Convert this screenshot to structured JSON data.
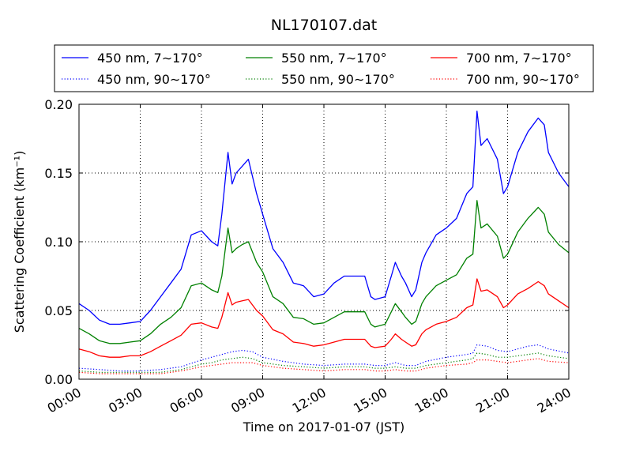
{
  "chart_data": {
    "type": "line",
    "title": "NL170107.dat",
    "xlabel": "Time on 2017-01-07 (JST)",
    "ylabel": "Scattering Coefficient (km⁻¹)",
    "xlim": [
      0,
      24
    ],
    "ylim": [
      0,
      0.2
    ],
    "xticks": [
      "00:00",
      "03:00",
      "06:00",
      "09:00",
      "12:00",
      "15:00",
      "18:00",
      "21:00",
      "24:00"
    ],
    "yticks": [
      "0.00",
      "0.05",
      "0.10",
      "0.15",
      "0.20"
    ],
    "grid": true,
    "legend_position": "top",
    "series": [
      {
        "name": "450 nm, 7∼170°",
        "color": "#0000ff",
        "style": "solid",
        "x": [
          0,
          0.5,
          1,
          1.5,
          2,
          2.5,
          3,
          3.5,
          4,
          4.5,
          5,
          5.5,
          6,
          6.5,
          6.8,
          7,
          7.3,
          7.5,
          7.7,
          8,
          8.3,
          8.7,
          9,
          9.5,
          10,
          10.5,
          11,
          11.5,
          12,
          12.5,
          13,
          13.5,
          14,
          14.3,
          14.5,
          15,
          15.3,
          15.5,
          15.8,
          16,
          16.3,
          16.5,
          16.8,
          17,
          17.5,
          18,
          18.5,
          19,
          19.3,
          19.5,
          19.7,
          20,
          20.5,
          20.8,
          21,
          21.5,
          22,
          22.5,
          22.8,
          23,
          23.5,
          24
        ],
        "y": [
          0.055,
          0.05,
          0.043,
          0.04,
          0.04,
          0.041,
          0.042,
          0.05,
          0.06,
          0.07,
          0.08,
          0.105,
          0.108,
          0.1,
          0.097,
          0.12,
          0.165,
          0.142,
          0.15,
          0.155,
          0.16,
          0.135,
          0.12,
          0.095,
          0.085,
          0.07,
          0.068,
          0.06,
          0.062,
          0.07,
          0.075,
          0.075,
          0.075,
          0.06,
          0.058,
          0.06,
          0.075,
          0.085,
          0.075,
          0.07,
          0.06,
          0.065,
          0.085,
          0.092,
          0.105,
          0.11,
          0.117,
          0.135,
          0.14,
          0.195,
          0.17,
          0.175,
          0.16,
          0.135,
          0.14,
          0.165,
          0.18,
          0.19,
          0.185,
          0.165,
          0.15,
          0.14
        ]
      },
      {
        "name": "550 nm, 7∼170°",
        "color": "#008000",
        "style": "solid",
        "x": [
          0,
          0.5,
          1,
          1.5,
          2,
          2.5,
          3,
          3.5,
          4,
          4.5,
          5,
          5.5,
          6,
          6.5,
          6.8,
          7,
          7.3,
          7.5,
          7.7,
          8,
          8.3,
          8.7,
          9,
          9.5,
          10,
          10.5,
          11,
          11.5,
          12,
          12.5,
          13,
          13.5,
          14,
          14.3,
          14.5,
          15,
          15.3,
          15.5,
          15.8,
          16,
          16.3,
          16.5,
          16.8,
          17,
          17.5,
          18,
          18.5,
          19,
          19.3,
          19.5,
          19.7,
          20,
          20.5,
          20.8,
          21,
          21.5,
          22,
          22.5,
          22.8,
          23,
          23.5,
          24
        ],
        "y": [
          0.037,
          0.033,
          0.028,
          0.026,
          0.026,
          0.027,
          0.028,
          0.033,
          0.04,
          0.045,
          0.052,
          0.068,
          0.07,
          0.065,
          0.063,
          0.075,
          0.11,
          0.092,
          0.095,
          0.098,
          0.1,
          0.085,
          0.078,
          0.06,
          0.055,
          0.045,
          0.044,
          0.04,
          0.041,
          0.045,
          0.049,
          0.049,
          0.049,
          0.04,
          0.038,
          0.04,
          0.049,
          0.055,
          0.049,
          0.045,
          0.04,
          0.042,
          0.055,
          0.06,
          0.068,
          0.072,
          0.076,
          0.088,
          0.091,
          0.13,
          0.11,
          0.113,
          0.104,
          0.088,
          0.091,
          0.107,
          0.117,
          0.125,
          0.12,
          0.107,
          0.098,
          0.092
        ]
      },
      {
        "name": "700 nm, 7∼170°",
        "color": "#ff0000",
        "style": "solid",
        "x": [
          0,
          0.5,
          1,
          1.5,
          2,
          2.5,
          3,
          3.5,
          4,
          4.5,
          5,
          5.5,
          6,
          6.5,
          6.8,
          7,
          7.3,
          7.5,
          7.7,
          8,
          8.3,
          8.7,
          9,
          9.5,
          10,
          10.5,
          11,
          11.5,
          12,
          12.5,
          13,
          13.5,
          14,
          14.3,
          14.5,
          15,
          15.3,
          15.5,
          15.8,
          16,
          16.3,
          16.5,
          16.8,
          17,
          17.5,
          18,
          18.5,
          19,
          19.3,
          19.5,
          19.7,
          20,
          20.5,
          20.8,
          21,
          21.5,
          22,
          22.5,
          22.8,
          23,
          23.5,
          24
        ],
        "y": [
          0.022,
          0.02,
          0.017,
          0.016,
          0.016,
          0.017,
          0.017,
          0.02,
          0.024,
          0.028,
          0.032,
          0.04,
          0.041,
          0.038,
          0.037,
          0.045,
          0.063,
          0.054,
          0.056,
          0.057,
          0.058,
          0.05,
          0.046,
          0.036,
          0.033,
          0.027,
          0.026,
          0.024,
          0.025,
          0.027,
          0.029,
          0.029,
          0.029,
          0.024,
          0.023,
          0.024,
          0.029,
          0.033,
          0.029,
          0.027,
          0.024,
          0.025,
          0.033,
          0.036,
          0.04,
          0.042,
          0.045,
          0.052,
          0.054,
          0.073,
          0.064,
          0.065,
          0.06,
          0.052,
          0.054,
          0.062,
          0.066,
          0.071,
          0.068,
          0.062,
          0.057,
          0.052
        ]
      },
      {
        "name": "450 nm, 90∼170°",
        "color": "#0000ff",
        "style": "dotted",
        "x": [
          0,
          1,
          2,
          3,
          4,
          5,
          6,
          6.5,
          7,
          7.5,
          8,
          8.5,
          9,
          10,
          11,
          12,
          13,
          14,
          14.5,
          15,
          15.5,
          16,
          16.5,
          17,
          18,
          19,
          19.3,
          19.5,
          20,
          20.5,
          21,
          21.5,
          22,
          22.5,
          23,
          24
        ],
        "y": [
          0.008,
          0.007,
          0.006,
          0.006,
          0.007,
          0.009,
          0.014,
          0.016,
          0.018,
          0.02,
          0.021,
          0.02,
          0.016,
          0.013,
          0.011,
          0.01,
          0.011,
          0.011,
          0.01,
          0.01,
          0.012,
          0.01,
          0.01,
          0.013,
          0.016,
          0.018,
          0.019,
          0.025,
          0.024,
          0.021,
          0.02,
          0.022,
          0.024,
          0.025,
          0.022,
          0.019
        ]
      },
      {
        "name": "550 nm, 90∼170°",
        "color": "#008000",
        "style": "dotted",
        "x": [
          0,
          1,
          2,
          3,
          4,
          5,
          6,
          6.5,
          7,
          7.5,
          8,
          8.5,
          9,
          10,
          11,
          12,
          13,
          14,
          14.5,
          15,
          15.5,
          16,
          16.5,
          17,
          18,
          19,
          19.3,
          19.5,
          20,
          20.5,
          21,
          21.5,
          22,
          22.5,
          23,
          24
        ],
        "y": [
          0.006,
          0.005,
          0.005,
          0.005,
          0.005,
          0.007,
          0.011,
          0.012,
          0.014,
          0.015,
          0.016,
          0.015,
          0.012,
          0.01,
          0.009,
          0.008,
          0.009,
          0.009,
          0.008,
          0.008,
          0.009,
          0.008,
          0.008,
          0.01,
          0.012,
          0.014,
          0.015,
          0.019,
          0.018,
          0.016,
          0.016,
          0.017,
          0.018,
          0.019,
          0.017,
          0.015
        ]
      },
      {
        "name": "700 nm, 90∼170°",
        "color": "#ff0000",
        "style": "dotted",
        "x": [
          0,
          1,
          2,
          3,
          4,
          5,
          6,
          6.5,
          7,
          7.5,
          8,
          8.5,
          9,
          10,
          11,
          12,
          13,
          14,
          14.5,
          15,
          15.5,
          16,
          16.5,
          17,
          18,
          19,
          19.3,
          19.5,
          20,
          20.5,
          21,
          21.5,
          22,
          22.5,
          23,
          24
        ],
        "y": [
          0.005,
          0.004,
          0.004,
          0.004,
          0.004,
          0.006,
          0.009,
          0.01,
          0.011,
          0.012,
          0.012,
          0.012,
          0.01,
          0.008,
          0.007,
          0.006,
          0.007,
          0.007,
          0.006,
          0.006,
          0.007,
          0.006,
          0.006,
          0.008,
          0.01,
          0.011,
          0.012,
          0.014,
          0.014,
          0.013,
          0.012,
          0.013,
          0.014,
          0.015,
          0.013,
          0.012
        ]
      }
    ],
    "legend_order": [
      0,
      1,
      2,
      3,
      4,
      5
    ]
  }
}
